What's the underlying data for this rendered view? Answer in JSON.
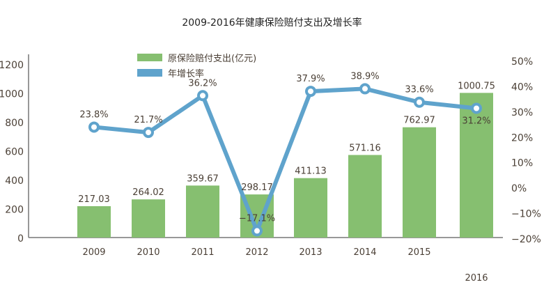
{
  "chart_data": {
    "type": "bar+line",
    "title": "2009-2016年健康保险赔付支出及增长率",
    "categories": [
      "2009",
      "2010",
      "2011",
      "2012",
      "2013",
      "2014",
      "2015",
      "2016"
    ],
    "series": [
      {
        "name": "原保险赔付支出(亿元)",
        "type": "bar",
        "axis": "left",
        "color": "#86bf70",
        "values": [
          217.03,
          264.02,
          359.67,
          298.17,
          411.13,
          571.16,
          762.97,
          1000.75
        ],
        "labels": [
          "217.03",
          "264.02",
          "359.67",
          "298.17",
          "411.13",
          "571.16",
          "762.97",
          "1000.75"
        ]
      },
      {
        "name": "年增长率",
        "type": "line",
        "axis": "right",
        "color": "#5fa3cc",
        "values": [
          23.8,
          21.7,
          36.2,
          -17.1,
          37.9,
          38.9,
          33.6,
          31.2
        ],
        "labels": [
          "23.8%",
          "21.7%",
          "36.2%",
          "−17.1%",
          "37.9%",
          "38.9%",
          "33.6%",
          "31.2%"
        ]
      }
    ],
    "left_axis": {
      "ylim": [
        0,
        1200
      ],
      "ticks": [
        "0",
        "200",
        "400",
        "600",
        "800",
        "1000",
        "1200"
      ]
    },
    "right_axis": {
      "ylim": [
        -20,
        50
      ],
      "ticks": [
        "-20%",
        "-10%",
        "0%",
        "10%",
        "20%",
        "30%",
        "40%",
        "50%"
      ]
    },
    "legend": "top-center",
    "grid": false
  }
}
